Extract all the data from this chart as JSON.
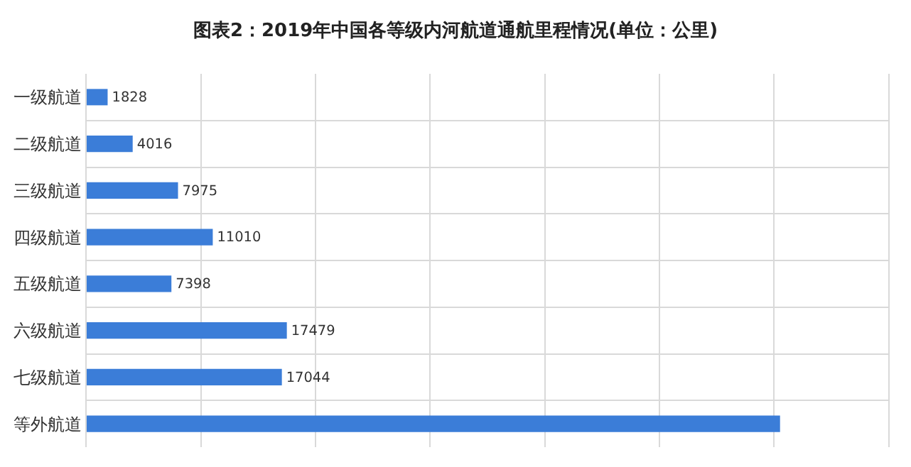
{
  "chart_data": {
    "type": "bar",
    "orientation": "horizontal",
    "title": "图表2：2019年中国各等级内河航道通航里程情况(单位：公里)",
    "categories": [
      "一级航道",
      "二级航道",
      "三级航道",
      "四级航道",
      "五级航道",
      "六级航道",
      "七级航道",
      "等外航道"
    ],
    "values": [
      1828,
      4016,
      7975,
      11010,
      7398,
      17479,
      17044,
      60550
    ],
    "value_labels": [
      "1828",
      "4016",
      "7975",
      "11010",
      "7398",
      "17479",
      "17044",
      null
    ],
    "color": "#3b7dd8",
    "xlim": [
      0,
      70000
    ],
    "xticks": [
      {
        "value": 0,
        "label": null
      },
      {
        "value": 10000,
        "label": null
      },
      {
        "value": 20000,
        "label": null
      },
      {
        "value": 30000,
        "label": null
      },
      {
        "value": 40000,
        "label": null
      },
      {
        "value": 50000,
        "label": null
      },
      {
        "value": 60000,
        "label": null
      }
    ],
    "tick_labels": "y",
    "grid": true
  }
}
